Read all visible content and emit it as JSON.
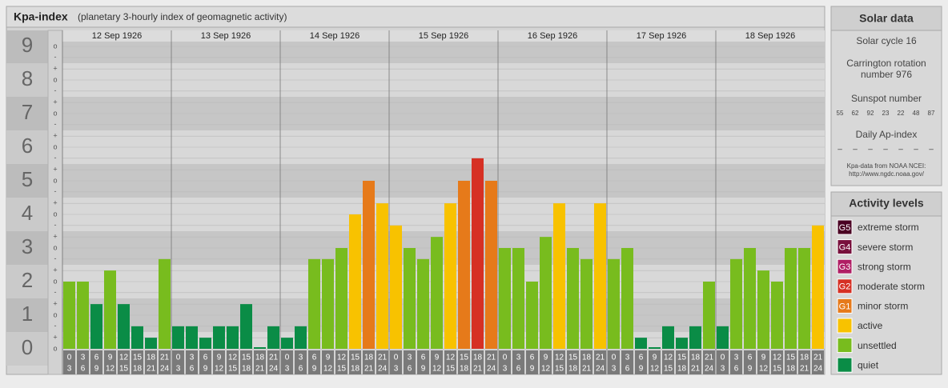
{
  "chart_data": {
    "type": "bar",
    "title": "Kpa-index",
    "subtitle": "(planetary 3-hourly index of geomagnetic activity)",
    "ylim": [
      0,
      9
    ],
    "yticks": [
      0,
      1,
      2,
      3,
      4,
      5,
      6,
      7,
      8,
      9
    ],
    "minor_yticks": [
      {
        "value": 0,
        "label": "o"
      },
      {
        "value": 0.33,
        "label": "+"
      },
      {
        "value": 0.67,
        "label": "-"
      },
      {
        "value": 1,
        "label": "o"
      },
      {
        "value": 1.33,
        "label": "+"
      },
      {
        "value": 1.67,
        "label": "-"
      },
      {
        "value": 2,
        "label": "o"
      },
      {
        "value": 2.33,
        "label": "+"
      },
      {
        "value": 2.67,
        "label": "-"
      },
      {
        "value": 3,
        "label": "o"
      },
      {
        "value": 3.33,
        "label": "+"
      },
      {
        "value": 3.67,
        "label": "-"
      },
      {
        "value": 4,
        "label": "o"
      },
      {
        "value": 4.33,
        "label": "+"
      },
      {
        "value": 4.67,
        "label": "-"
      },
      {
        "value": 5,
        "label": "o"
      },
      {
        "value": 5.33,
        "label": "+"
      },
      {
        "value": 5.67,
        "label": "-"
      },
      {
        "value": 6,
        "label": "o"
      },
      {
        "value": 6.33,
        "label": "+"
      },
      {
        "value": 6.67,
        "label": "-"
      },
      {
        "value": 7,
        "label": "o"
      },
      {
        "value": 7.33,
        "label": "+"
      },
      {
        "value": 7.67,
        "label": "-"
      },
      {
        "value": 8,
        "label": "o"
      },
      {
        "value": 8.33,
        "label": "+"
      },
      {
        "value": 8.67,
        "label": "-"
      },
      {
        "value": 9,
        "label": "o"
      }
    ],
    "hours_start": [
      "0",
      "3",
      "6",
      "9",
      "12",
      "15",
      "18",
      "21"
    ],
    "hours_end": [
      "3",
      "6",
      "9",
      "12",
      "15",
      "18",
      "21",
      "24"
    ],
    "days": [
      {
        "date": "12 Sep 1926",
        "values": [
          2,
          2,
          1.33,
          2.33,
          1.33,
          0.67,
          0.33,
          2.67
        ],
        "colors": [
          "#78bc1e",
          "#78bc1e",
          "#0a8c46",
          "#78bc1e",
          "#0a8c46",
          "#0a8c46",
          "#0a8c46",
          "#78bc1e"
        ]
      },
      {
        "date": "13 Sep 1926",
        "values": [
          0.67,
          0.67,
          0.33,
          0.67,
          0.67,
          1.33,
          0,
          0.67
        ],
        "colors": [
          "#0a8c46",
          "#0a8c46",
          "#0a8c46",
          "#0a8c46",
          "#0a8c46",
          "#0a8c46",
          "#0a8c46",
          "#0a8c46"
        ]
      },
      {
        "date": "14 Sep 1926",
        "values": [
          0.33,
          0.67,
          2.67,
          2.67,
          3,
          4,
          5,
          4.33
        ],
        "colors": [
          "#0a8c46",
          "#0a8c46",
          "#78bc1e",
          "#78bc1e",
          "#78bc1e",
          "#f8c200",
          "#e67a1a",
          "#f8c200"
        ]
      },
      {
        "date": "15 Sep 1926",
        "values": [
          3.67,
          3,
          2.67,
          3.33,
          4.33,
          5,
          5.67,
          5
        ],
        "colors": [
          "#f8c200",
          "#78bc1e",
          "#78bc1e",
          "#78bc1e",
          "#f8c200",
          "#e67a1a",
          "#d63024",
          "#e67a1a"
        ]
      },
      {
        "date": "16 Sep 1926",
        "values": [
          3,
          3,
          2,
          3.33,
          4.33,
          3,
          2.67,
          4.33
        ],
        "colors": [
          "#78bc1e",
          "#78bc1e",
          "#78bc1e",
          "#78bc1e",
          "#f8c200",
          "#78bc1e",
          "#78bc1e",
          "#f8c200"
        ]
      },
      {
        "date": "17 Sep 1926",
        "values": [
          2.67,
          3,
          0.33,
          0,
          0.67,
          0.33,
          0.67,
          2
        ],
        "colors": [
          "#78bc1e",
          "#78bc1e",
          "#0a8c46",
          "#0a8c46",
          "#0a8c46",
          "#0a8c46",
          "#0a8c46",
          "#78bc1e"
        ]
      },
      {
        "date": "18 Sep 1926",
        "values": [
          0.67,
          2.67,
          3,
          2.33,
          2,
          3,
          3,
          3.67
        ],
        "colors": [
          "#0a8c46",
          "#78bc1e",
          "#78bc1e",
          "#78bc1e",
          "#78bc1e",
          "#78bc1e",
          "#78bc1e",
          "#f8c200"
        ]
      }
    ]
  },
  "solar": {
    "title": "Solar data",
    "cycle": "Solar cycle 16",
    "rotation": "Carrington rotation number 976",
    "sunspot_title": "Sunspot number",
    "sunspot_numbers": [
      55,
      62,
      92,
      23,
      22,
      48,
      87
    ],
    "ap_title": "Daily Ap-index",
    "ap_values": [
      "–",
      "–",
      "–",
      "–",
      "–",
      "–",
      "–"
    ],
    "source": "Kpa-data from NOAA NCEI:",
    "source_url": "http://www.ngdc.noaa.gov/"
  },
  "levels": {
    "title": "Activity levels",
    "items": [
      {
        "badge": "G5",
        "name": "extreme storm",
        "color": "#4a0022"
      },
      {
        "badge": "G4",
        "name": "severe storm",
        "color": "#78103c"
      },
      {
        "badge": "G3",
        "name": "strong storm",
        "color": "#b01e64"
      },
      {
        "badge": "G2",
        "name": "moderate storm",
        "color": "#d63024"
      },
      {
        "badge": "G1",
        "name": "minor storm",
        "color": "#e67a1a"
      },
      {
        "name": "active",
        "color": "#f8c200"
      },
      {
        "name": "unsettled",
        "color": "#78bc1e"
      },
      {
        "name": "quiet",
        "color": "#0a8c46"
      }
    ]
  }
}
